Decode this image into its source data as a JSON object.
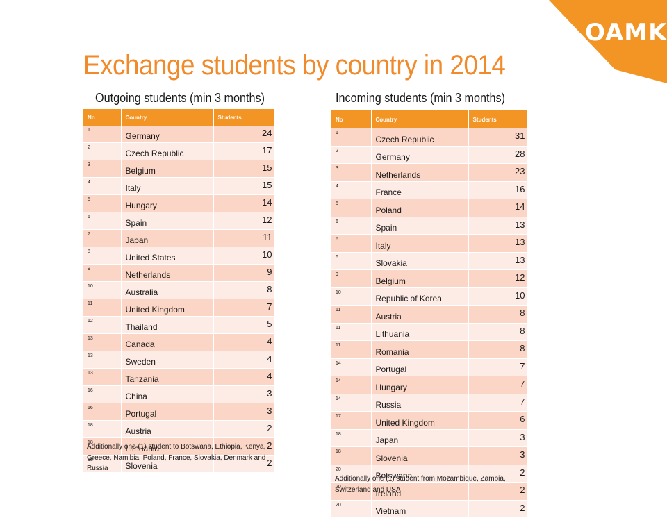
{
  "brand": {
    "logo_text": "OAMK",
    "accent_color": "#f39525"
  },
  "title": "Exchange students by country in 2014",
  "outgoing": {
    "subtitle": "Outgoing students (min 3 months)",
    "headers": [
      "No",
      "Country",
      "Students"
    ],
    "rows": [
      {
        "no": "1",
        "country": "Germany",
        "students": "24"
      },
      {
        "no": "2",
        "country": "Czech Republic",
        "students": "17"
      },
      {
        "no": "3",
        "country": "Belgium",
        "students": "15"
      },
      {
        "no": "4",
        "country": "Italy",
        "students": "15"
      },
      {
        "no": "5",
        "country": "Hungary",
        "students": "14"
      },
      {
        "no": "6",
        "country": "Spain",
        "students": "12"
      },
      {
        "no": "7",
        "country": "Japan",
        "students": "11"
      },
      {
        "no": "8",
        "country": "United States",
        "students": "10"
      },
      {
        "no": "9",
        "country": "Netherlands",
        "students": "9"
      },
      {
        "no": "10",
        "country": "Australia",
        "students": "8"
      },
      {
        "no": "11",
        "country": "United Kingdom",
        "students": "7"
      },
      {
        "no": "12",
        "country": "Thailand",
        "students": "5"
      },
      {
        "no": "13",
        "country": "Canada",
        "students": "4"
      },
      {
        "no": "13",
        "country": "Sweden",
        "students": "4"
      },
      {
        "no": "13",
        "country": "Tanzania",
        "students": "4"
      },
      {
        "no": "16",
        "country": "China",
        "students": "3"
      },
      {
        "no": "16",
        "country": "Portugal",
        "students": "3"
      },
      {
        "no": "18",
        "country": "Austria",
        "students": "2"
      },
      {
        "no": "18",
        "country": "Lithuania",
        "students": "2"
      },
      {
        "no": "18",
        "country": "Slovenia",
        "students": "2"
      }
    ],
    "note": "Additionally one (1) student to Botswana, Ethiopia, Kenya, Greece, Namibia, Poland, France, Slovakia, Denmark and Russia"
  },
  "incoming": {
    "subtitle": "Incoming students (min 3 months)",
    "headers": [
      "No",
      "Country",
      "Students"
    ],
    "rows": [
      {
        "no": "1",
        "country": "Czech Republic",
        "students": "31"
      },
      {
        "no": "2",
        "country": "Germany",
        "students": "28"
      },
      {
        "no": "3",
        "country": "Netherlands",
        "students": "23"
      },
      {
        "no": "4",
        "country": "France",
        "students": "16"
      },
      {
        "no": "5",
        "country": "Poland",
        "students": "14"
      },
      {
        "no": "6",
        "country": "Spain",
        "students": "13"
      },
      {
        "no": "6",
        "country": "Italy",
        "students": "13"
      },
      {
        "no": "6",
        "country": "Slovakia",
        "students": "13"
      },
      {
        "no": "9",
        "country": "Belgium",
        "students": "12"
      },
      {
        "no": "10",
        "country": "Republic of Korea",
        "students": "10"
      },
      {
        "no": "11",
        "country": "Austria",
        "students": "8"
      },
      {
        "no": "11",
        "country": "Lithuania",
        "students": "8"
      },
      {
        "no": "11",
        "country": "Romania",
        "students": "8"
      },
      {
        "no": "14",
        "country": "Portugal",
        "students": "7"
      },
      {
        "no": "14",
        "country": "Hungary",
        "students": "7"
      },
      {
        "no": "14",
        "country": "Russia",
        "students": "7"
      },
      {
        "no": "17",
        "country": "United Kingdom",
        "students": "6"
      },
      {
        "no": "18",
        "country": "Japan",
        "students": "3"
      },
      {
        "no": "18",
        "country": "Slovenia",
        "students": "3"
      },
      {
        "no": "20",
        "country": "Botswana",
        "students": "2"
      },
      {
        "no": "20",
        "country": "Ireland",
        "students": "2"
      },
      {
        "no": "20",
        "country": "Vietnam",
        "students": "2"
      }
    ],
    "note": "Additionally one (1) student from Mozambique, Zambia, Switzerland and USA"
  }
}
